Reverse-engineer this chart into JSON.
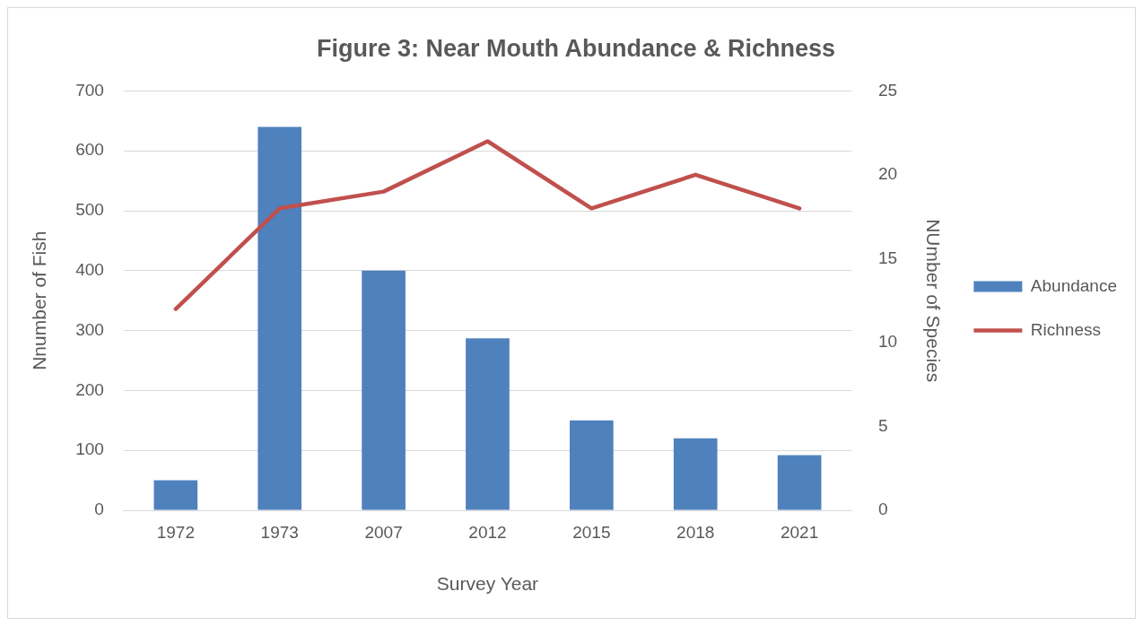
{
  "chart_data": {
    "type": "bar",
    "title": "Figure 3: Near Mouth Abundance & Richness",
    "xlabel": "Survey Year",
    "ylabel": "Nnumber of Fish",
    "y2label": "NUmber of Species",
    "categories": [
      "1972",
      "1973",
      "2007",
      "2012",
      "2015",
      "2018",
      "2021"
    ],
    "series": [
      {
        "name": "Abundance",
        "color": "#4f81bd",
        "values": [
          50,
          640,
          400,
          287,
          150,
          120,
          92
        ]
      },
      {
        "name": "Richness",
        "type": "line",
        "axis": "y2",
        "color": "#c0504d",
        "values": [
          12,
          18,
          19,
          22,
          18,
          20,
          18
        ]
      }
    ],
    "ylim": [
      0,
      700
    ],
    "yticks": [
      0,
      100,
      200,
      300,
      400,
      500,
      600,
      700
    ],
    "y2lim": [
      0,
      25
    ],
    "y2ticks": [
      0,
      5,
      10,
      15,
      20,
      25
    ],
    "grid": "y",
    "legend": "right",
    "marker": "none",
    "line_style": "solid"
  }
}
